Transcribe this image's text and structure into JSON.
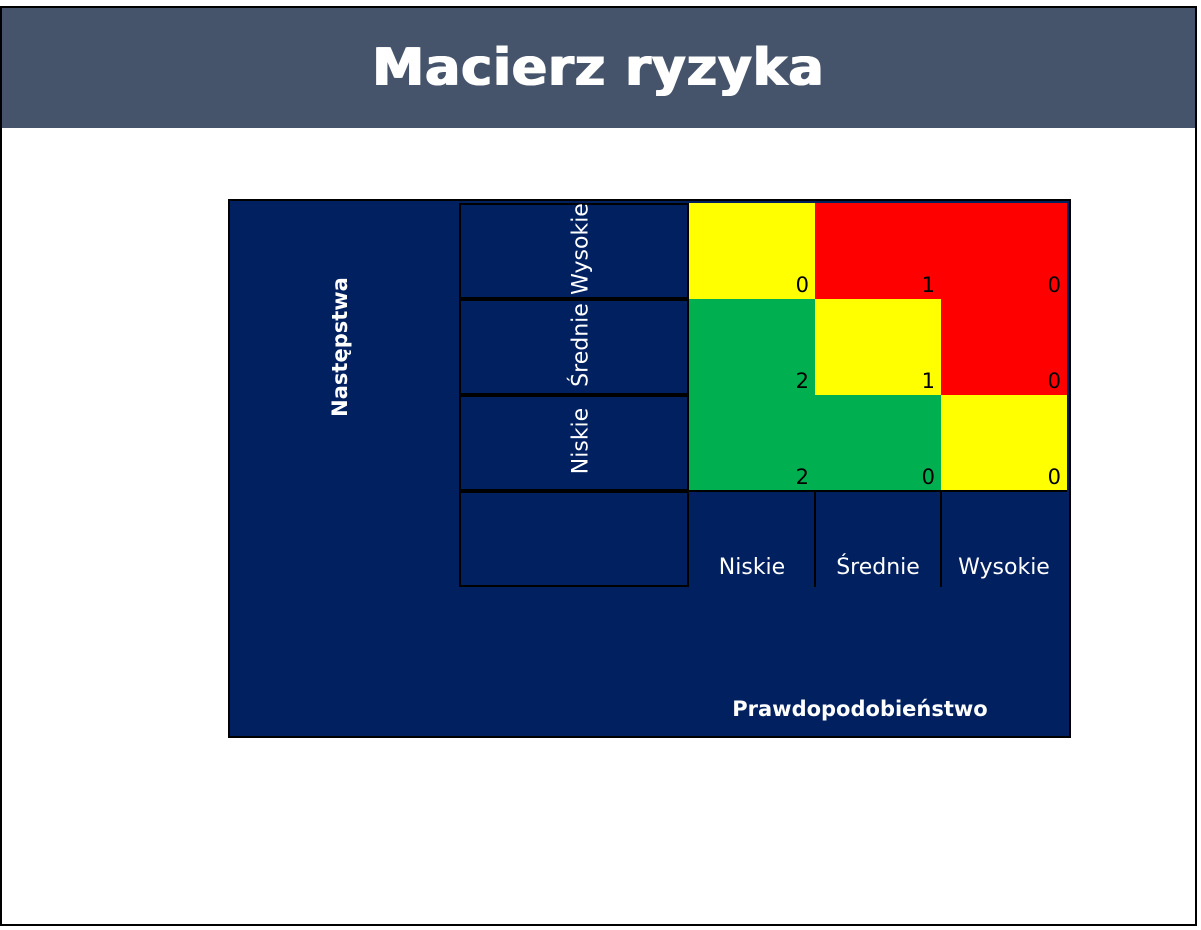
{
  "title": "Macierz ryzyka",
  "chart_data": {
    "type": "heatmap",
    "title": "Macierz ryzyka",
    "xlabel": "Prawdopodobieństwo",
    "ylabel": "Następstwa",
    "x_categories": [
      "Niskie",
      "Średnie",
      "Wysokie"
    ],
    "y_categories": [
      "Wysokie",
      "Średnie",
      "Niskie"
    ],
    "values": [
      [
        0,
        1,
        0
      ],
      [
        2,
        1,
        0
      ],
      [
        2,
        0,
        0
      ]
    ],
    "cell_colors": [
      [
        "#ffff00",
        "#ff0000",
        "#ff0000"
      ],
      [
        "#00b050",
        "#ffff00",
        "#ff0000"
      ],
      [
        "#00b050",
        "#00b050",
        "#ffff00"
      ]
    ],
    "background_color": "#002060"
  }
}
